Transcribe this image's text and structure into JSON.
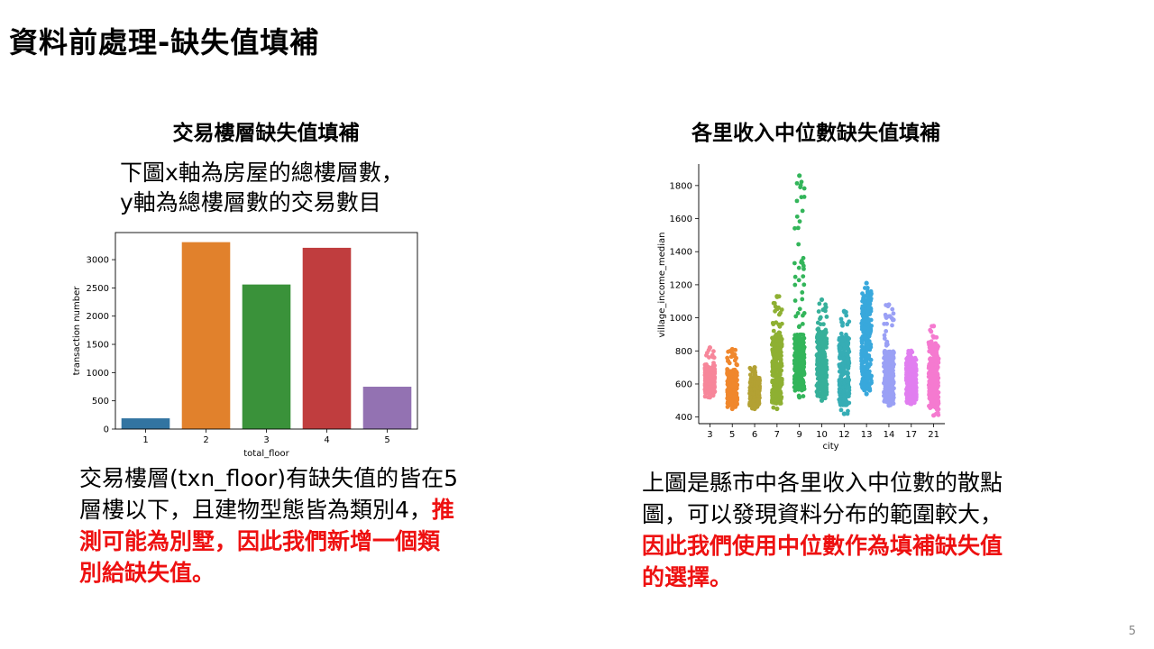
{
  "slide": {
    "title": "資料前處理-缺失值填補",
    "page_number": "5"
  },
  "left": {
    "heading": "交易樓層缺失值填補",
    "intro_line1": "下圖x軸為房屋的總樓層數，",
    "intro_line2": "y軸為總樓層數的交易數目",
    "body_plain": "交易樓層(txn_floor)有缺失值的皆在5層樓以下，且建物型態皆為類別4，",
    "body_red": "推測可能為別墅，因此我們新增一個類別給缺失值。"
  },
  "right": {
    "heading": "各里收入中位數缺失值填補",
    "body_plain": "上圖是縣市中各里收入中位數的散點圖，可以發現資料分布的範圍較大，",
    "body_red": "因此我們使用中位數作為填補缺失值的選擇。"
  },
  "chart_data": [
    {
      "type": "bar",
      "categories": [
        "1",
        "2",
        "3",
        "4",
        "5"
      ],
      "values": [
        190,
        3310,
        2560,
        3210,
        750
      ],
      "colors": [
        "#3274a1",
        "#e1812c",
        "#3a923a",
        "#c03d3e",
        "#9372b2"
      ],
      "xlabel": "total_floor",
      "ylabel": "transaction number",
      "yticks": [
        0,
        500,
        1000,
        1500,
        2000,
        2500,
        3000
      ],
      "ylim": [
        0,
        3480
      ],
      "frame": "box",
      "grid": false
    },
    {
      "type": "scatter",
      "style": "strip",
      "xlabel": "city",
      "ylabel": "village_income_median",
      "yticks": [
        400,
        600,
        800,
        1000,
        1200,
        1400,
        1600,
        1800
      ],
      "ylim": [
        360,
        1930
      ],
      "frame": "left-bottom",
      "grid": false,
      "series": [
        {
          "category": "3",
          "color": "#f7869a",
          "min": 520,
          "max": 820,
          "core": [
            540,
            700
          ]
        },
        {
          "category": "5",
          "color": "#f0872c",
          "min": 450,
          "max": 810,
          "core": [
            470,
            680
          ]
        },
        {
          "category": "6",
          "color": "#b3a133",
          "min": 450,
          "max": 700,
          "core": [
            470,
            640
          ]
        },
        {
          "category": "7",
          "color": "#8eb032",
          "min": 450,
          "max": 1130,
          "core": [
            480,
            900
          ]
        },
        {
          "category": "9",
          "color": "#33b55a",
          "min": 520,
          "max": 1860,
          "core": [
            560,
            900
          ]
        },
        {
          "category": "10",
          "color": "#36b09a",
          "min": 500,
          "max": 1110,
          "core": [
            520,
            920
          ]
        },
        {
          "category": "12",
          "color": "#36adb5",
          "min": 420,
          "max": 1040,
          "core": [
            470,
            880
          ]
        },
        {
          "category": "13",
          "color": "#38a8dc",
          "min": 540,
          "max": 1210,
          "core": [
            560,
            1160
          ]
        },
        {
          "category": "14",
          "color": "#9aa0f5",
          "min": 470,
          "max": 1080,
          "core": [
            490,
            800
          ]
        },
        {
          "category": "17",
          "color": "#e17ef0",
          "min": 480,
          "max": 800,
          "core": [
            500,
            760
          ]
        },
        {
          "category": "21",
          "color": "#f57ad0",
          "min": 410,
          "max": 950,
          "core": [
            450,
            850
          ]
        }
      ]
    }
  ]
}
